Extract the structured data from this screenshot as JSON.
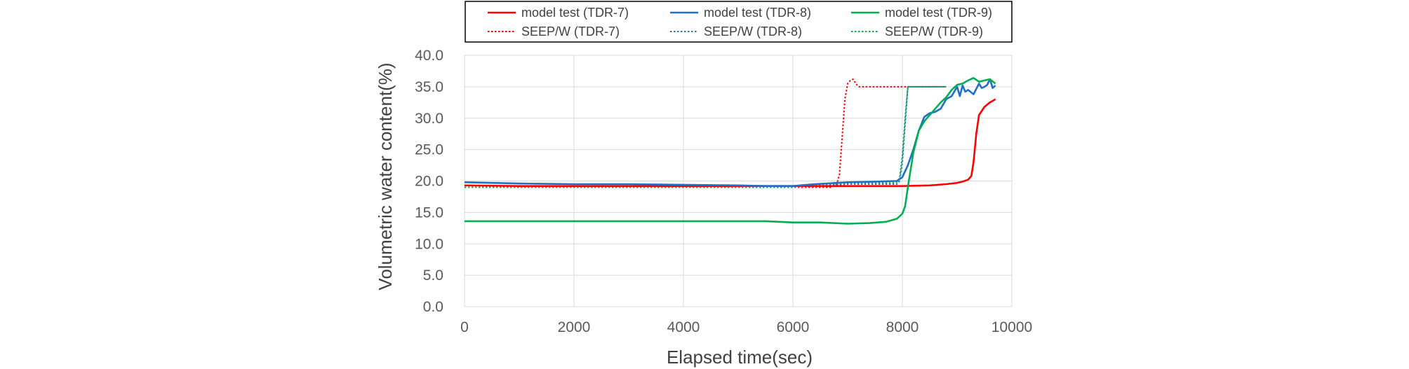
{
  "chart_data": {
    "type": "line",
    "title": "",
    "xlabel": "Elapsed time(sec)",
    "ylabel": "Volumetric water content(%)",
    "xlim": [
      0,
      10000
    ],
    "ylim": [
      0,
      40
    ],
    "xticks": [
      0,
      2000,
      4000,
      6000,
      8000,
      10000
    ],
    "xtick_labels": [
      "0",
      "2000",
      "4000",
      "6000",
      "8000",
      "10000"
    ],
    "yticks": [
      0,
      5,
      10,
      15,
      20,
      25,
      30,
      35,
      40
    ],
    "ytick_labels": [
      "0.0",
      "5.0",
      "10.0",
      "15.0",
      "20.0",
      "25.0",
      "30.0",
      "35.0",
      "40.0"
    ],
    "grid": true,
    "legend_position": "top",
    "series": [
      {
        "name": "model test (TDR-7)",
        "color": "#ff0000",
        "dash": "solid",
        "x": [
          0,
          1000,
          2000,
          3000,
          4000,
          5000,
          6000,
          7000,
          7500,
          8000,
          8500,
          8800,
          9000,
          9100,
          9200,
          9260,
          9300,
          9350,
          9400,
          9500,
          9600,
          9700
        ],
        "y": [
          19.3,
          19.2,
          19.2,
          19.2,
          19.2,
          19.2,
          19.2,
          19.2,
          19.2,
          19.2,
          19.3,
          19.5,
          19.7,
          19.9,
          20.2,
          20.8,
          23.0,
          27.5,
          30.5,
          31.8,
          32.5,
          33.0
        ]
      },
      {
        "name": "model test (TDR-8)",
        "color": "#1f6fc6",
        "dash": "solid",
        "x": [
          0,
          1000,
          2000,
          3000,
          4000,
          5000,
          5500,
          6000,
          6400,
          7000,
          7500,
          7900,
          8000,
          8100,
          8200,
          8300,
          8400,
          8500,
          8600,
          8700,
          8800,
          8900,
          9000,
          9050,
          9100,
          9150,
          9200,
          9300,
          9400,
          9450,
          9500,
          9550,
          9600,
          9650,
          9700
        ],
        "y": [
          19.8,
          19.6,
          19.5,
          19.5,
          19.4,
          19.3,
          19.2,
          19.2,
          19.5,
          19.8,
          19.9,
          20.0,
          20.6,
          22.5,
          25.0,
          28.0,
          30.2,
          30.8,
          31.0,
          31.5,
          33.0,
          33.5,
          35.0,
          33.5,
          35.2,
          34.2,
          34.5,
          33.8,
          35.5,
          34.8,
          35.0,
          35.3,
          36.2,
          34.8,
          35.2
        ]
      },
      {
        "name": "model test (TDR-9)",
        "color": "#00b050",
        "dash": "solid",
        "x": [
          0,
          1000,
          2000,
          3000,
          4000,
          5000,
          5500,
          6000,
          6500,
          7000,
          7400,
          7700,
          7900,
          8000,
          8050,
          8100,
          8200,
          8300,
          8400,
          8500,
          8600,
          8700,
          8800,
          8900,
          9000,
          9100,
          9200,
          9300,
          9400,
          9500,
          9600,
          9700
        ],
        "y": [
          13.6,
          13.6,
          13.6,
          13.6,
          13.6,
          13.6,
          13.6,
          13.4,
          13.4,
          13.2,
          13.3,
          13.5,
          14.0,
          14.8,
          16.0,
          19.0,
          24.5,
          28.0,
          29.5,
          30.5,
          31.5,
          32.5,
          33.3,
          34.5,
          35.3,
          35.5,
          36.0,
          36.4,
          35.8,
          36.0,
          36.2,
          35.5
        ]
      },
      {
        "name": "SEEP/W (TDR-7)",
        "color": "#ff0000",
        "dash": "dotted",
        "x": [
          0,
          1000,
          2000,
          3000,
          4000,
          5000,
          6000,
          6700,
          6800,
          6850,
          6900,
          6950,
          7000,
          7050,
          7100,
          7150,
          7200,
          7500,
          8000,
          8500,
          8800
        ],
        "y": [
          19.0,
          19.0,
          19.0,
          19.0,
          19.0,
          19.0,
          19.0,
          19.0,
          19.5,
          21.0,
          27.0,
          33.0,
          35.5,
          36.0,
          36.2,
          35.5,
          35.0,
          35.0,
          35.0,
          35.0,
          35.0
        ]
      },
      {
        "name": "SEEP/W (TDR-8)",
        "color": "#2e75b6",
        "dash": "dotted",
        "x": [
          0,
          1000,
          2000,
          3000,
          4000,
          5000,
          6000,
          7000,
          7800,
          7900,
          7950,
          8000,
          8050,
          8100,
          8150,
          8500,
          8800
        ],
        "y": [
          19.0,
          19.0,
          19.0,
          19.0,
          19.0,
          19.0,
          19.0,
          19.5,
          19.5,
          19.5,
          20.0,
          23.0,
          29.0,
          35.0,
          35.0,
          35.0,
          35.0
        ]
      },
      {
        "name": "SEEP/W (TDR-9)",
        "color": "#00b050",
        "dash": "dotted",
        "x": [
          0,
          1000,
          2000,
          3000,
          4000,
          5000,
          6000,
          7000,
          7800,
          7900,
          7950,
          8000,
          8050,
          8100,
          8150,
          8500,
          8800
        ],
        "y": [
          19.0,
          19.0,
          19.0,
          19.0,
          19.0,
          19.0,
          19.0,
          19.7,
          19.7,
          19.8,
          20.5,
          24.0,
          30.0,
          35.0,
          35.0,
          35.0,
          35.0
        ]
      }
    ]
  }
}
